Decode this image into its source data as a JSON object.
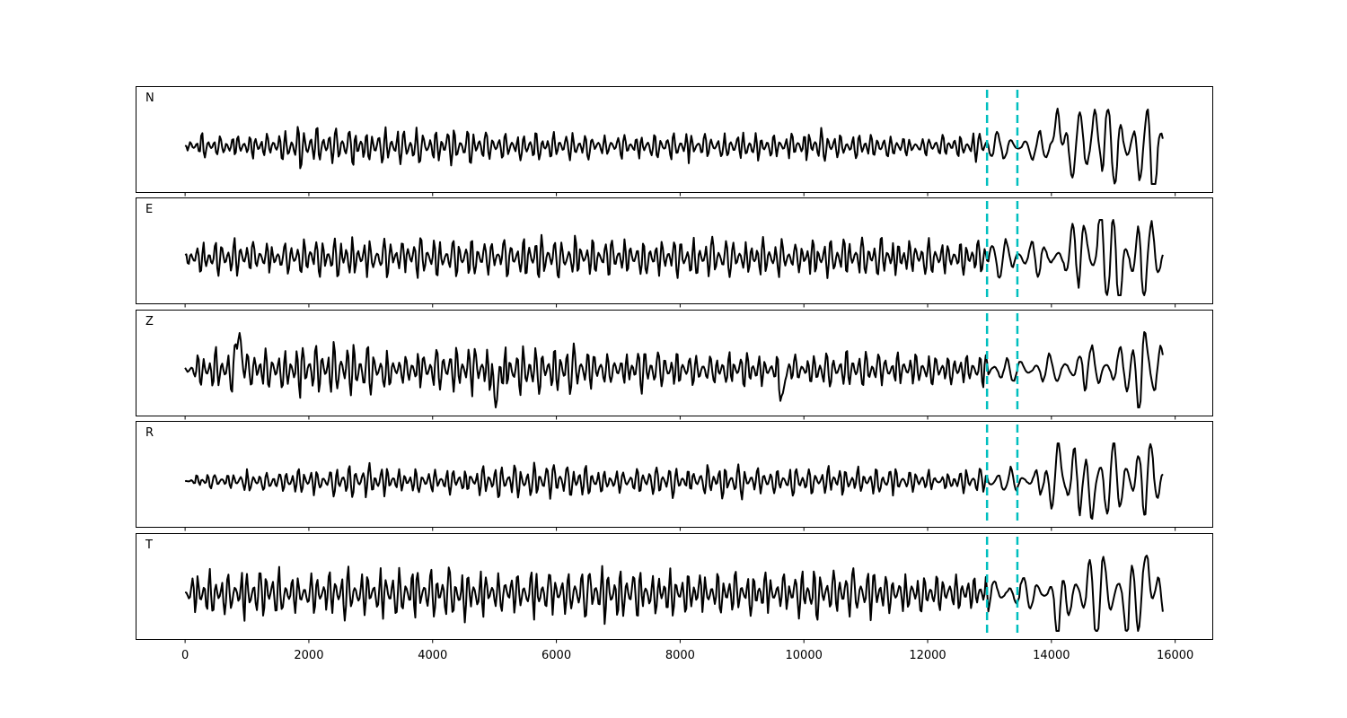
{
  "chart_data": {
    "type": "line",
    "xlim": [
      -800,
      16600
    ],
    "x_ticks": [
      0,
      2000,
      4000,
      6000,
      8000,
      10000,
      12000,
      14000,
      16000
    ],
    "x_tick_labels": [
      "0",
      "2000",
      "4000",
      "6000",
      "8000",
      "10000",
      "12000",
      "14000",
      "16000"
    ],
    "x_range": [
      0,
      15800
    ],
    "markers": [
      12960,
      13450
    ],
    "marker_style": {
      "color": "#00bfbf",
      "dash": "dashed"
    },
    "line_color": "#000000",
    "panels": [
      {
        "label": "N",
        "seed": 11,
        "noise_amp": [
          0.25,
          0.4,
          0.35,
          0.3,
          0.3,
          0.3,
          0.28,
          0.25,
          0.3,
          0.85
        ],
        "late_spikes": [
          [
            14100,
            1.0
          ],
          [
            14700,
            0.7
          ],
          [
            15650,
            -0.9
          ]
        ]
      },
      {
        "label": "E",
        "seed": 23,
        "noise_amp": [
          0.4,
          0.45,
          0.42,
          0.45,
          0.4,
          0.45,
          0.4,
          0.38,
          0.4,
          0.85
        ],
        "late_spikes": [
          [
            14800,
            1.0
          ],
          [
            15100,
            -0.9
          ],
          [
            14500,
            0.8
          ]
        ]
      },
      {
        "label": "Z",
        "seed": 37,
        "noise_amp": [
          0.45,
          0.55,
          0.45,
          0.5,
          0.45,
          0.4,
          0.4,
          0.35,
          0.35,
          0.6
        ],
        "late_spikes": [
          [
            870,
            1.0
          ],
          [
            5020,
            -0.85
          ],
          [
            9650,
            -0.8
          ],
          [
            15500,
            1.0
          ],
          [
            15420,
            -1.0
          ]
        ]
      },
      {
        "label": "R",
        "seed": 53,
        "noise_amp": [
          0.22,
          0.3,
          0.3,
          0.38,
          0.35,
          0.3,
          0.28,
          0.25,
          0.3,
          0.85
        ],
        "late_spikes": [
          [
            14110,
            1.0
          ],
          [
            14650,
            -0.8
          ],
          [
            14000,
            -0.6
          ]
        ]
      },
      {
        "label": "T",
        "seed": 71,
        "noise_amp": [
          0.55,
          0.5,
          0.55,
          0.5,
          0.55,
          0.5,
          0.55,
          0.4,
          0.35,
          0.9
        ],
        "late_spikes": [
          [
            14100,
            -1.0
          ],
          [
            15550,
            0.95
          ],
          [
            15250,
            -0.9
          ]
        ]
      }
    ]
  }
}
